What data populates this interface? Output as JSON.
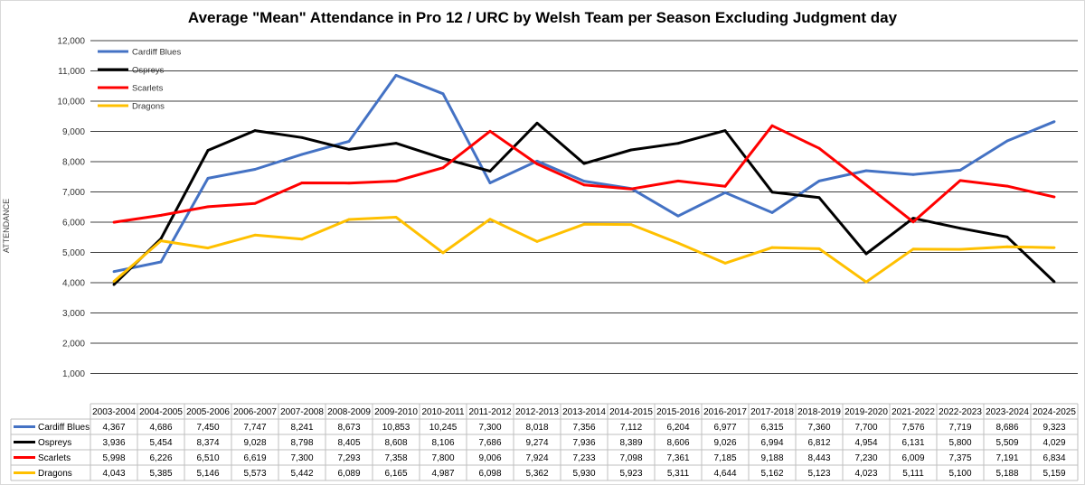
{
  "chart_data": {
    "type": "line",
    "title": "Average \"Mean\" Attendance in Pro 12 / URC by Welsh Team per Season Excluding Judgment day",
    "ylabel": "ATTENDANCE",
    "xlabel": "",
    "ylim": [
      0,
      12000
    ],
    "yticks": [
      1000,
      2000,
      3000,
      4000,
      5000,
      6000,
      7000,
      8000,
      9000,
      10000,
      11000,
      12000
    ],
    "ytick_labels": [
      "1,000",
      "2,000",
      "3,000",
      "4,000",
      "5,000",
      "6,000",
      "7,000",
      "8,000",
      "9,000",
      "10,000",
      "11,000",
      "12,000"
    ],
    "grid": true,
    "legend_position": "top-left",
    "categories": [
      "2003-2004",
      "2004-2005",
      "2005-2006",
      "2006-2007",
      "2007-2008",
      "2008-2009",
      "2009-2010",
      "2010-2011",
      "2011-2012",
      "2012-2013",
      "2013-2014",
      "2014-2015",
      "2015-2016",
      "2016-2017",
      "2017-2018",
      "2018-2019",
      "2019-2020",
      "2021-2022",
      "2022-2023",
      "2023-2024",
      "2024-2025"
    ],
    "series": [
      {
        "name": "Cardiff Blues",
        "color": "#4472C4",
        "values": [
          4367,
          4686,
          7450,
          7747,
          8241,
          8673,
          10853,
          10245,
          7300,
          8018,
          7356,
          7112,
          6204,
          6977,
          6315,
          7360,
          7700,
          7576,
          7719,
          8686,
          9323
        ],
        "labels": [
          "4,367",
          "4,686",
          "7,450",
          "7,747",
          "8,241",
          "8,673",
          "10,853",
          "10,245",
          "7,300",
          "8,018",
          "7,356",
          "7,112",
          "6,204",
          "6,977",
          "6,315",
          "7,360",
          "7,700",
          "7,576",
          "7,719",
          "8,686",
          "9,323"
        ]
      },
      {
        "name": "Ospreys",
        "color": "#000000",
        "values": [
          3936,
          5454,
          8374,
          9028,
          8798,
          8405,
          8608,
          8106,
          7686,
          9274,
          7936,
          8389,
          8606,
          9026,
          6994,
          6812,
          4954,
          6131,
          5800,
          5509,
          4029
        ],
        "labels": [
          "3,936",
          "5,454",
          "8,374",
          "9,028",
          "8,798",
          "8,405",
          "8,608",
          "8,106",
          "7,686",
          "9,274",
          "7,936",
          "8,389",
          "8,606",
          "9,026",
          "6,994",
          "6,812",
          "4,954",
          "6,131",
          "5,800",
          "5,509",
          "4,029"
        ]
      },
      {
        "name": "Scarlets",
        "color": "#FF0000",
        "values": [
          5998,
          6226,
          6510,
          6619,
          7300,
          7293,
          7358,
          7800,
          9006,
          7924,
          7233,
          7098,
          7361,
          7185,
          9188,
          8443,
          7230,
          6009,
          7375,
          7191,
          6834
        ],
        "labels": [
          "5,998",
          "6,226",
          "6,510",
          "6,619",
          "7,300",
          "7,293",
          "7,358",
          "7,800",
          "9,006",
          "7,924",
          "7,233",
          "7,098",
          "7,361",
          "7,185",
          "9,188",
          "8,443",
          "7,230",
          "6,009",
          "7,375",
          "7,191",
          "6,834"
        ]
      },
      {
        "name": "Dragons",
        "color": "#FFC000",
        "values": [
          4043,
          5385,
          5146,
          5573,
          5442,
          6089,
          6165,
          4987,
          6098,
          5362,
          5930,
          5923,
          5311,
          4644,
          5162,
          5123,
          4023,
          5111,
          5100,
          5188,
          5159
        ],
        "labels": [
          "4,043",
          "5,385",
          "5,146",
          "5,573",
          "5,442",
          "6,089",
          "6,165",
          "4,987",
          "6,098",
          "5,362",
          "5,930",
          "5,923",
          "5,311",
          "4,644",
          "5,162",
          "5,123",
          "4,023",
          "5,111",
          "5,100",
          "5,188",
          "5,159"
        ]
      }
    ]
  }
}
